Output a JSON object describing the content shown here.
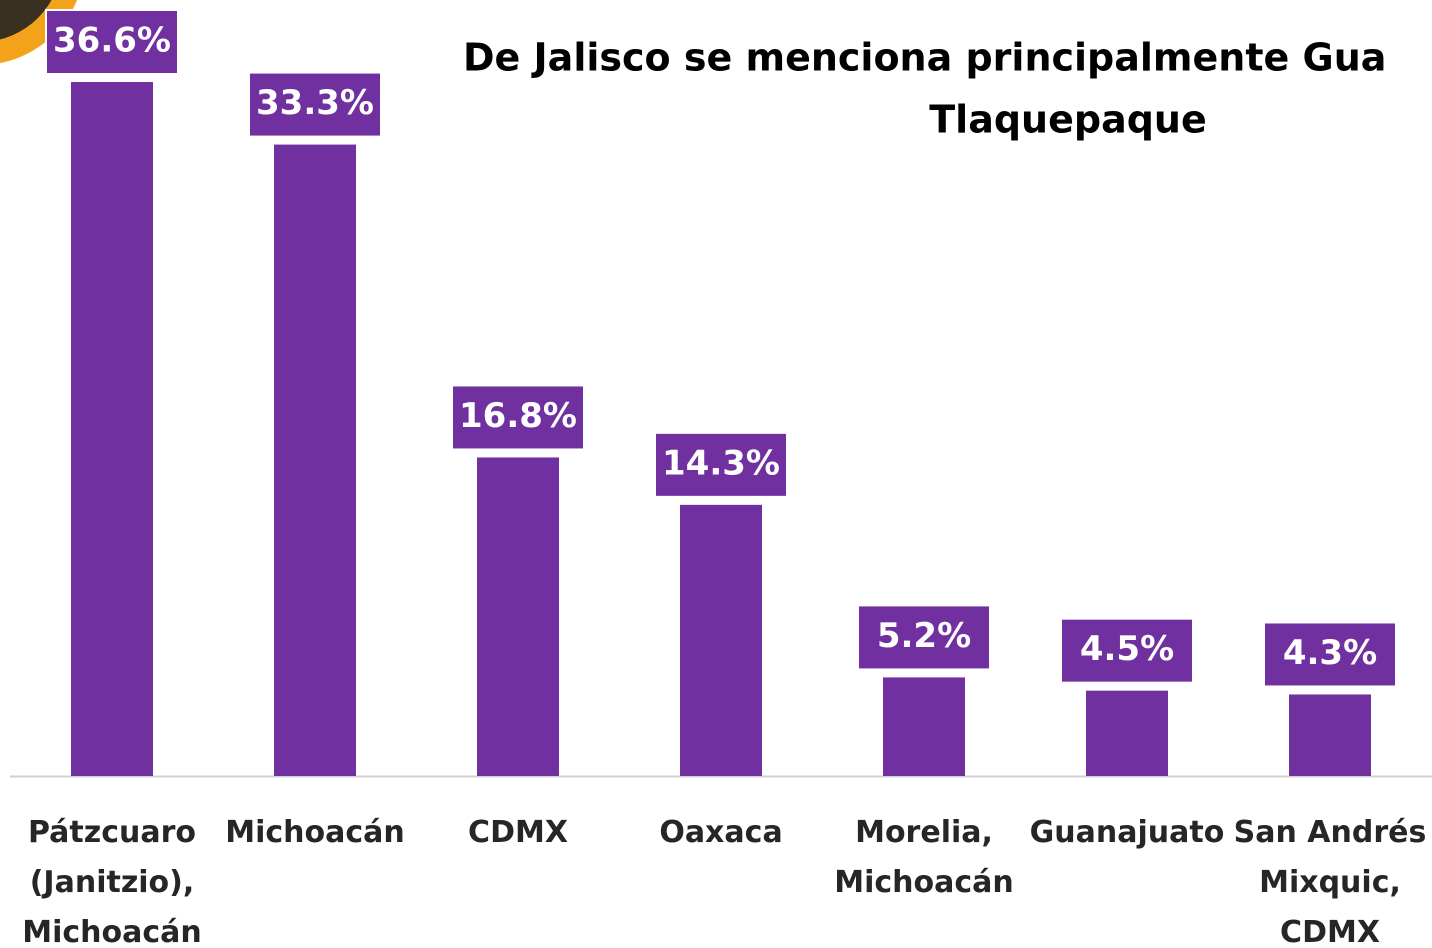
{
  "chart_data": {
    "type": "bar",
    "title_lines": [
      "De Jalisco se menciona principalmente Gua",
      "Tlaquepaque"
    ],
    "categories": [
      "Pátzcuaro (Janitzio), Michoacán",
      "Michoacán",
      "CDMX",
      "Oaxaca",
      "Morelia, Michoacán",
      "Guanajuato",
      "San Andrés Mixquic, CDMX"
    ],
    "values": [
      36.6,
      33.3,
      16.8,
      14.3,
      5.2,
      4.5,
      4.3
    ],
    "value_labels": [
      "36.6%",
      "33.3%",
      "16.8%",
      "14.3%",
      "5.2%",
      "4.5%",
      "4.3%"
    ],
    "color": "#7030a0"
  }
}
